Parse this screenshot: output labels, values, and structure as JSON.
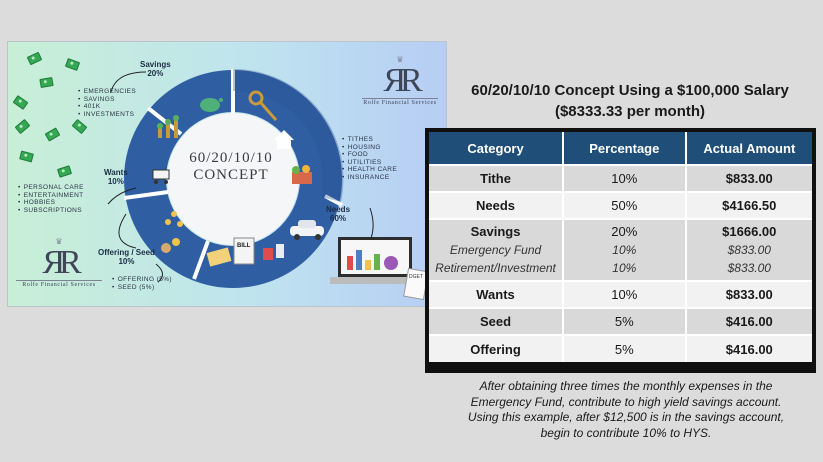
{
  "infographic": {
    "savings_head": [
      "Savings",
      "20%"
    ],
    "savings_items": [
      "EMERGENCIES",
      "SAVINGS",
      "401K",
      "INVESTMENTS"
    ],
    "wants_head": [
      "Wants",
      "10%"
    ],
    "wants_items": [
      "PERSONAL CARE",
      "ENTERTAINMENT",
      "HOBBIES",
      "SUBSCRIPTIONS"
    ],
    "needs_head": [
      "Needs",
      "60%"
    ],
    "needs_items": [
      "TITHES",
      "HOUSING",
      "FOOD",
      "UTILITIES",
      "HEALTH CARE",
      "INSURANCE"
    ],
    "offering_head": [
      "Offering / Seed",
      "10%"
    ],
    "offering_items": [
      "OFFERING (5%)",
      "SEED (5%)"
    ],
    "center_lines": [
      "60/20/10/10",
      "CONCEPT"
    ],
    "logo_mark": "ЯR",
    "logo_name": "Rolfe Financial Services",
    "bill_text": "BILL",
    "budget_text": "DGET",
    "colors": {
      "ring_dark": "#2b4f93",
      "ring_light": "#4e7fc3",
      "bg_left": "#c8efd6",
      "bg_right": "#b7cdf5"
    }
  },
  "heading": {
    "line1": "60/20/10/10 Concept Using a $100,000 Salary",
    "line2": "($8333.33 per month)"
  },
  "table": {
    "headers": [
      "Category",
      "Percentage",
      "Actual Amount"
    ],
    "rows": {
      "tithe": {
        "cat": "Tithe",
        "pct": "10%",
        "amt": "$833.00"
      },
      "needs": {
        "cat": "Needs",
        "pct": "50%",
        "amt": "$4166.50"
      },
      "savings": {
        "cat": "Savings",
        "pct": "20%",
        "amt": "$1666.00",
        "sub1_cat": "Emergency Fund",
        "sub1_pct": "10%",
        "sub1_amt": "$833.00",
        "sub2_cat": "Retirement/Investment",
        "sub2_pct": "10%",
        "sub2_amt": "$833.00"
      },
      "wants": {
        "cat": "Wants",
        "pct": "10%",
        "amt": "$833.00"
      },
      "seed": {
        "cat": "Seed",
        "pct": "5%",
        "amt": "$416.00"
      },
      "offering": {
        "cat": "Offering",
        "pct": "5%",
        "amt": "$416.00"
      }
    },
    "colors": {
      "header_bg": "#1f4e79",
      "row_shade": "#d9d9d9",
      "row_plain": "#f2f2f2"
    }
  },
  "note": {
    "lines": [
      "After obtaining three times the monthly expenses in the",
      "Emergency Fund, contribute to high yield savings account.",
      "Using this example, after $12,500 is in the savings account,",
      "begin to contribute 10%  to HYS."
    ]
  }
}
